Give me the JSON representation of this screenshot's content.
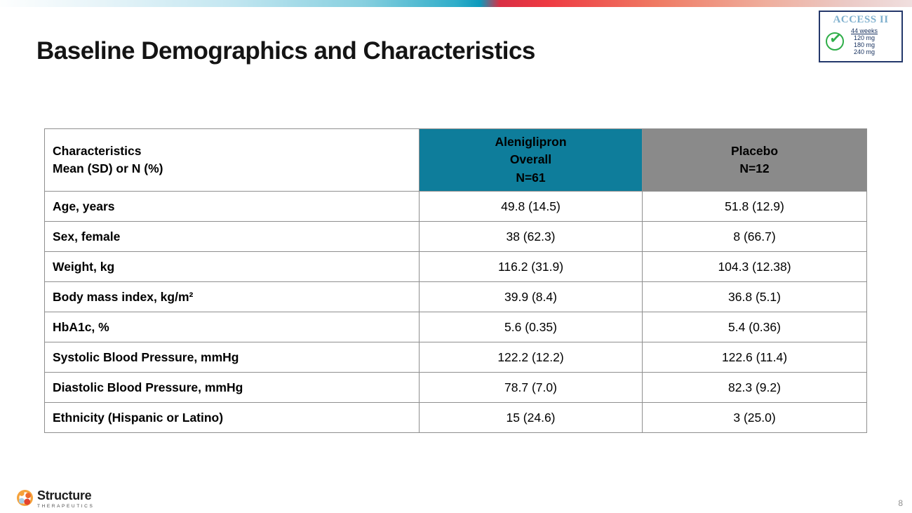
{
  "header": {
    "title": "Baseline Demographics and Characteristics"
  },
  "access_badge": {
    "title": "ACCESS II",
    "duration": "44 weeks",
    "doses": [
      "120 mg",
      "180 mg",
      "240 mg"
    ],
    "border_color": "#24386b",
    "title_color": "#7fb0ce",
    "check_color": "#2fae49",
    "check_icon": "✓"
  },
  "table": {
    "header": {
      "characteristics_line1": "Characteristics",
      "characteristics_line2": "Mean (SD) or N (%)",
      "aleniglipron_line1": "Aleniglipron",
      "aleniglipron_line2": "Overall",
      "aleniglipron_line3": "N=61",
      "aleniglipron_bg": "#0e7d9b",
      "placebo_line1": "Placebo",
      "placebo_line2": "N=12",
      "placebo_bg": "#8a8a8a"
    },
    "rows": [
      {
        "label": "Age, years",
        "aleniglipron": "49.8 (14.5)",
        "placebo": "51.8 (12.9)"
      },
      {
        "label": "Sex, female",
        "aleniglipron": "38 (62.3)",
        "placebo": "8 (66.7)"
      },
      {
        "label": "Weight, kg",
        "aleniglipron": "116.2 (31.9)",
        "placebo": "104.3 (12.38)"
      },
      {
        "label": "Body mass index, kg/m²",
        "aleniglipron": "39.9 (8.4)",
        "placebo": "36.8 (5.1)"
      },
      {
        "label": "HbA1c, %",
        "aleniglipron": "5.6 (0.35)",
        "placebo": "5.4 (0.36)"
      },
      {
        "label": "Systolic Blood Pressure, mmHg",
        "aleniglipron": "122.2 (12.2)",
        "placebo": "122.6 (11.4)"
      },
      {
        "label": "Diastolic Blood Pressure, mmHg",
        "aleniglipron": "78.7 (7.0)",
        "placebo": "82.3 (9.2)"
      },
      {
        "label": "Ethnicity (Hispanic or Latino)",
        "aleniglipron": "15 (24.6)",
        "placebo": "3 (25.0)"
      }
    ]
  },
  "footer": {
    "logo_name": "Structure",
    "logo_sub": "THERAPEUTICS",
    "page_number": "8"
  }
}
